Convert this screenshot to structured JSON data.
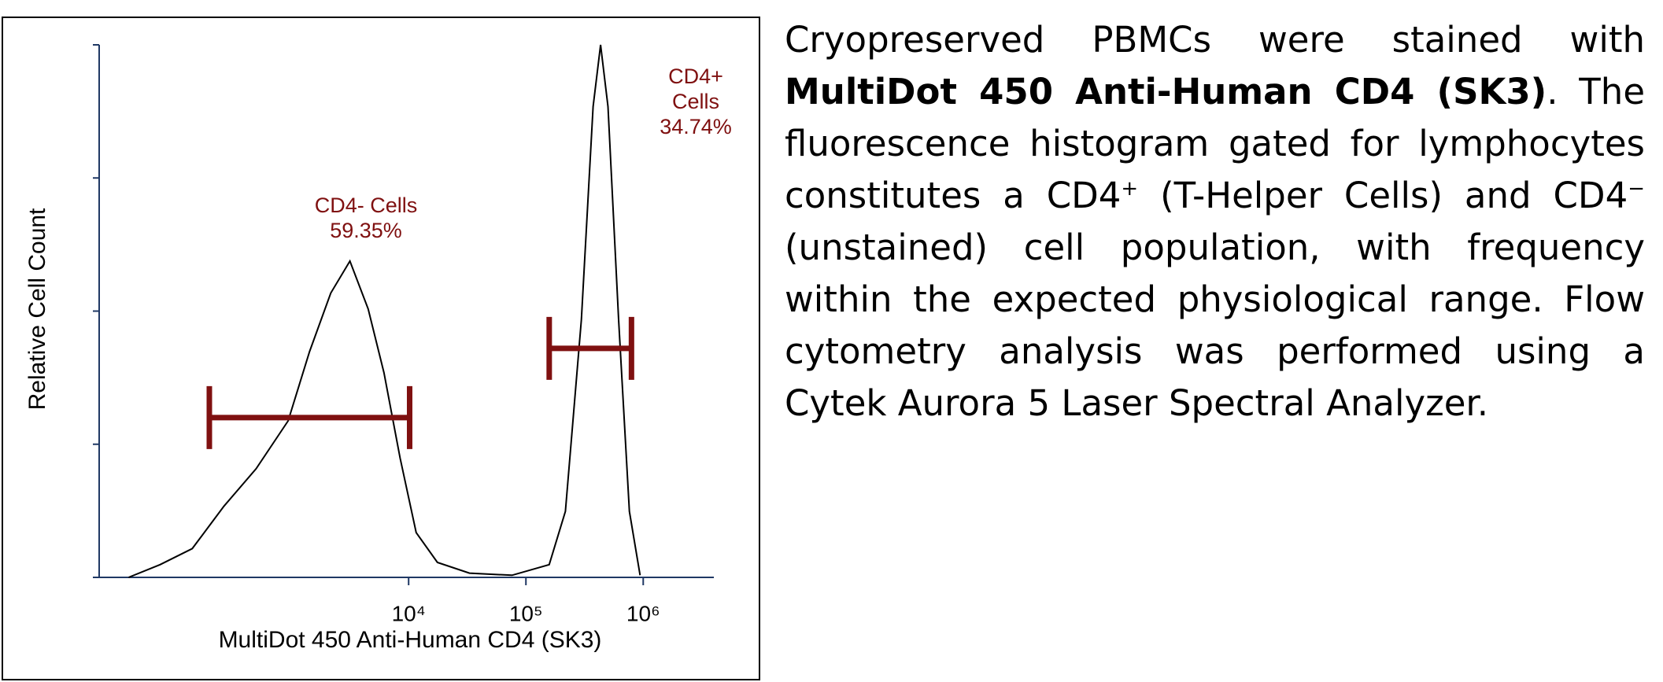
{
  "chart_data": {
    "type": "line",
    "xlabel": "MultiDot 450 Anti-Human CD4 (SK3)",
    "ylabel": "Relative Cell Count",
    "xscale": "log",
    "xlim": [
      23,
      4000000
    ],
    "ylim": [
      0,
      100
    ],
    "xticks": [
      {
        "value": 10000,
        "label": "10⁴"
      },
      {
        "value": 100000,
        "label": "10⁵"
      },
      {
        "value": 1000000,
        "label": "10⁶"
      }
    ],
    "yticks": [
      0,
      25,
      50,
      75,
      100
    ],
    "color": "#000000",
    "x": [
      41,
      76,
      143,
      267,
      501,
      939,
      1430,
      2170,
      3160,
      4520,
      6170,
      8460,
      11600,
      17600,
      33000,
      76200,
      158000,
      217000,
      297000,
      374000,
      433000,
      501000,
      617000,
      762000,
      940000
    ],
    "values": [
      0,
      2.4,
      5.4,
      13.4,
      20.4,
      29.4,
      42.4,
      53.4,
      59.4,
      50.4,
      38.4,
      22.4,
      8.4,
      2.8,
      0.8,
      0.4,
      2.4,
      12.4,
      48.4,
      88.4,
      100,
      88.4,
      48.4,
      12.4,
      0.4
    ],
    "gate_color": "#7f1010",
    "gates": [
      {
        "lines": [
          "CD4- Cells"
        ],
        "value": 59.35,
        "value_label": "59.35%",
        "range": [
          200,
          10200
        ],
        "y": 30
      },
      {
        "lines": [
          "CD4+",
          "Cells"
        ],
        "value": 34.74,
        "value_label": "34.74%",
        "range": [
          158000,
          794000
        ],
        "y": 43
      }
    ]
  },
  "caption": {
    "text1": "Cryopreserved PBMCs were stained with ",
    "bold": "MultiDot 450 Anti-Human CD4 (SK3)",
    "text2": ". The fluorescence histogram gated for lymphocytes constitutes a CD4",
    "sup1": "+",
    "text3": " (T-Helper Cells) and CD4",
    "sup2": "−",
    "text4": " (unstained) cell population, with frequency within the expected physiological range. Flow cytometry analysis was performed using a Cytek Aurora 5 Laser Spectral Analyzer."
  }
}
